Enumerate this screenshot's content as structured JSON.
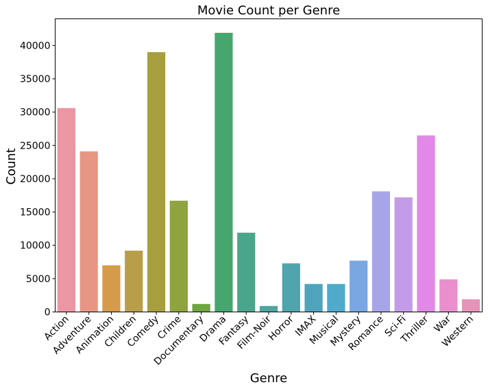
{
  "chart_data": {
    "type": "bar",
    "title": "Movie Count per Genre",
    "xlabel": "Genre",
    "ylabel": "Count",
    "ylim": [
      0,
      44000
    ],
    "yticks": [
      0,
      5000,
      10000,
      15000,
      20000,
      25000,
      30000,
      35000,
      40000
    ],
    "grid": false,
    "categories": [
      "Action",
      "Adventure",
      "Animation",
      "Children",
      "Comedy",
      "Crime",
      "Documentary",
      "Drama",
      "Fantasy",
      "Film-Noir",
      "Horror",
      "IMAX",
      "Musical",
      "Mystery",
      "Romance",
      "Sci-Fi",
      "Thriller",
      "War",
      "Western"
    ],
    "values": [
      30600,
      24100,
      7000,
      9200,
      39000,
      16700,
      1200,
      41900,
      11900,
      900,
      7300,
      4200,
      4200,
      7700,
      18100,
      17200,
      26500,
      4900,
      1900
    ],
    "colors": [
      "#ea96a3",
      "#e69683",
      "#d59b4a",
      "#b99e49",
      "#a79f3d",
      "#8fa33e",
      "#6da63e",
      "#47a66d",
      "#4ba58c",
      "#4ea49e",
      "#4fa4ae",
      "#50a3bc",
      "#4faacc",
      "#7aa7e2",
      "#a6a5e8",
      "#c49be8",
      "#e188e8",
      "#e98fcd",
      "#e693b9"
    ]
  }
}
